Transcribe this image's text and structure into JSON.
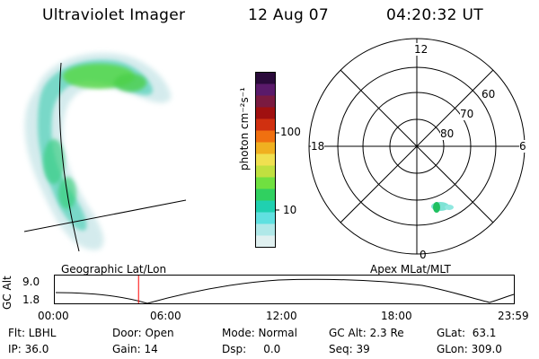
{
  "header": {
    "instrument": "Ultraviolet Imager",
    "date": "12 Aug 07",
    "time": "04:20:32 UT"
  },
  "colorbar": {
    "unit_label": "photon cm⁻²s⁻¹",
    "ticks": [
      "100",
      "10"
    ],
    "colors": [
      "#2a0a3a",
      "#5a1a6a",
      "#7a1a40",
      "#a01010",
      "#d03010",
      "#f07010",
      "#f0b020",
      "#f0e050",
      "#c0e040",
      "#70e040",
      "#30d060",
      "#20d0b0",
      "#60e0e0",
      "#b0e8e8",
      "#e0f0f0"
    ]
  },
  "polar": {
    "mlt_labels": [
      "12",
      "18",
      "6",
      "0"
    ],
    "lat_labels": [
      "60",
      "70",
      "80"
    ]
  },
  "timeline": {
    "left_title": "Geographic Lat/Lon",
    "right_title": "Apex MLat/MLT",
    "axis_label": "GC Alt",
    "y_max": "9.0",
    "y_min": "1.8",
    "x_ticks": [
      "00:00",
      "06:00",
      "12:00",
      "18:00",
      "23:59"
    ],
    "marker_time_hours": 4.34
  },
  "info": {
    "flt": "Flt: LBHL",
    "door": "Door: Open",
    "mode": "Mode: Normal",
    "gc_alt": "GC Alt: 2.3 Re",
    "glat": "GLat:  63.1",
    "ip": "IP: 36.0",
    "gain": "Gain: 14",
    "dsp": "Dsp:     0.0",
    "seq": "Seq: 39",
    "glon": "GLon: 309.0"
  }
}
